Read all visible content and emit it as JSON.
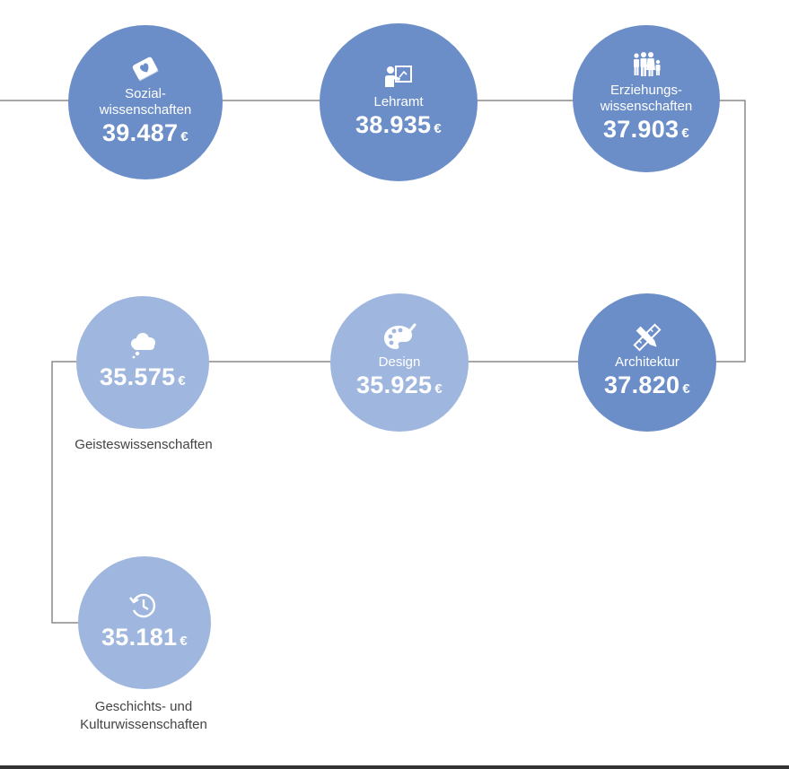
{
  "nodes": {
    "sozial": {
      "label": "Sozial-\nwissenschaften",
      "value": "39.487",
      "currency": "€",
      "icon": "book-heart-icon"
    },
    "lehramt": {
      "label": "Lehramt",
      "value": "38.935",
      "currency": "€",
      "icon": "teacher-board-icon"
    },
    "erziehung": {
      "label": "Erziehungs-\nwissenschaften",
      "value": "37.903",
      "currency": "€",
      "icon": "family-icon"
    },
    "architektur": {
      "label": "Architektur",
      "value": "37.820",
      "currency": "€",
      "icon": "pencil-ruler-icon"
    },
    "design": {
      "label": "Design",
      "value": "35.925",
      "currency": "€",
      "icon": "palette-icon"
    },
    "geistes": {
      "value": "35.575",
      "currency": "€",
      "icon": "thought-cloud-icon",
      "caption": "Geisteswissenschaften"
    },
    "geschichte": {
      "value": "35.181",
      "currency": "€",
      "icon": "history-clock-icon",
      "caption": "Geschichts- und\nKulturwissenschaften"
    }
  },
  "colors": {
    "dark_node": "#6b8ec9",
    "light_node": "#9fb6de",
    "connector": "#8a8a8a",
    "caption_text": "#444444"
  }
}
